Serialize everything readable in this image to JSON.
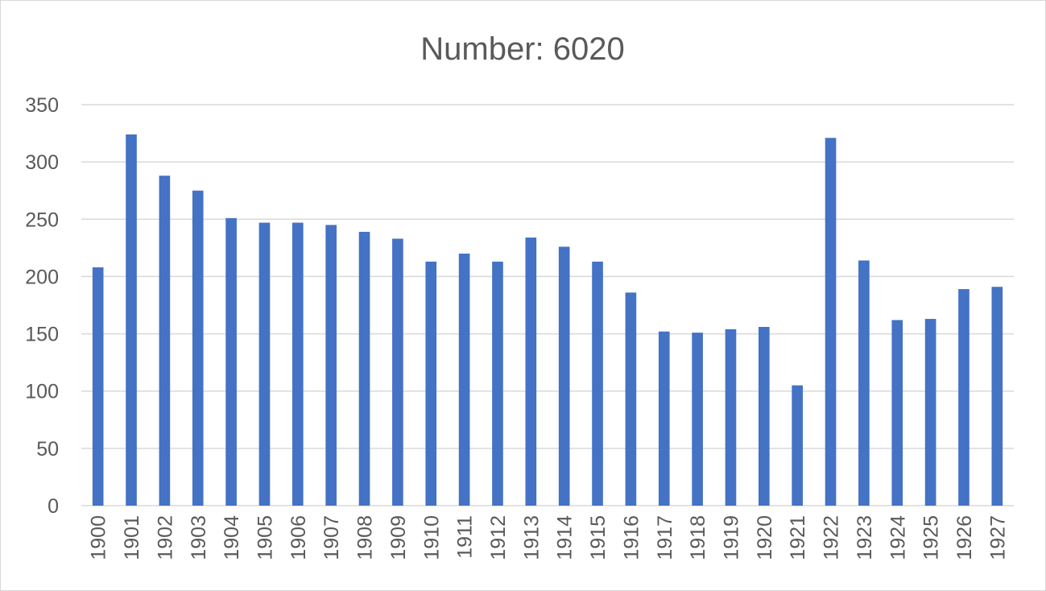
{
  "chart_data": {
    "type": "bar",
    "title": "Number: 6020",
    "xlabel": "",
    "ylabel": "",
    "categories": [
      "1900",
      "1901",
      "1902",
      "1903",
      "1904",
      "1905",
      "1906",
      "1907",
      "1908",
      "1909",
      "1910",
      "1911",
      "1912",
      "1913",
      "1914",
      "1915",
      "1916",
      "1917",
      "1918",
      "1919",
      "1920",
      "1921",
      "1922",
      "1923",
      "1924",
      "1925",
      "1926",
      "1927"
    ],
    "values": [
      208,
      324,
      288,
      275,
      251,
      247,
      247,
      245,
      239,
      233,
      213,
      220,
      213,
      234,
      226,
      213,
      186,
      152,
      151,
      154,
      156,
      105,
      321,
      214,
      162,
      163,
      189,
      191
    ],
    "ylim": [
      0,
      350
    ],
    "yticks": [
      "0",
      "50",
      "100",
      "150",
      "200",
      "250",
      "300",
      "350"
    ],
    "grid": true,
    "legend": "none",
    "bar_color": "#4472C4"
  }
}
